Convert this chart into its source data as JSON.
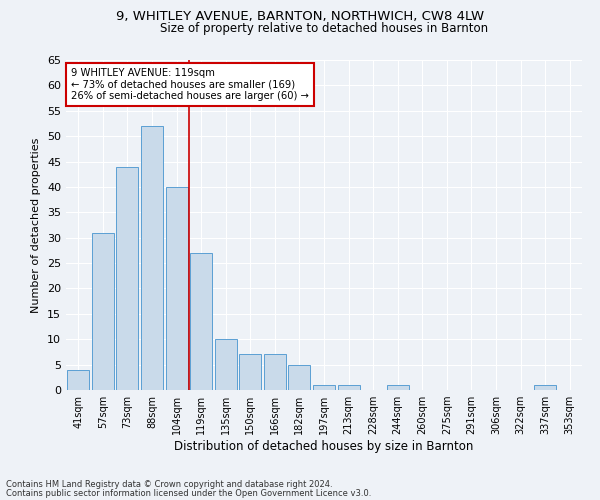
{
  "title1": "9, WHITLEY AVENUE, BARNTON, NORTHWICH, CW8 4LW",
  "title2": "Size of property relative to detached houses in Barnton",
  "xlabel": "Distribution of detached houses by size in Barnton",
  "ylabel": "Number of detached properties",
  "categories": [
    "41sqm",
    "57sqm",
    "73sqm",
    "88sqm",
    "104sqm",
    "119sqm",
    "135sqm",
    "150sqm",
    "166sqm",
    "182sqm",
    "197sqm",
    "213sqm",
    "228sqm",
    "244sqm",
    "260sqm",
    "275sqm",
    "291sqm",
    "306sqm",
    "322sqm",
    "337sqm",
    "353sqm"
  ],
  "values": [
    4,
    31,
    44,
    52,
    40,
    27,
    10,
    7,
    7,
    5,
    1,
    1,
    0,
    1,
    0,
    0,
    0,
    0,
    0,
    1,
    0
  ],
  "bar_color": "#c9daea",
  "bar_edge_color": "#5a9fd4",
  "annotation_line1": "9 WHITLEY AVENUE: 119sqm",
  "annotation_line2": "← 73% of detached houses are smaller (169)",
  "annotation_line3": "26% of semi-detached houses are larger (60) →",
  "red_line_color": "#cc0000",
  "annotation_box_edge": "#cc0000",
  "ylim": [
    0,
    65
  ],
  "yticks": [
    0,
    5,
    10,
    15,
    20,
    25,
    30,
    35,
    40,
    45,
    50,
    55,
    60,
    65
  ],
  "footnote1": "Contains HM Land Registry data © Crown copyright and database right 2024.",
  "footnote2": "Contains public sector information licensed under the Open Government Licence v3.0.",
  "bg_color": "#eef2f7",
  "grid_color": "#ffffff"
}
